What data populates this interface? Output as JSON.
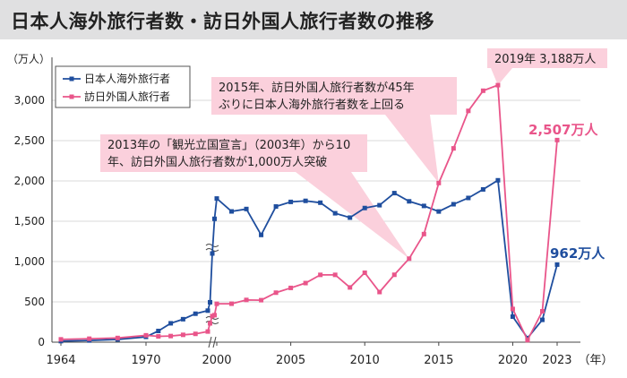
{
  "title": "日本人海外旅行者数・訪日外国人旅行者数の推移",
  "colors": {
    "outbound": "#1f4e9e",
    "inbound": "#e9558a",
    "callout": "#fbd0dc",
    "titlebar": "#e0e0e1"
  },
  "chart_data": {
    "type": "line",
    "ylabel": "（万人）",
    "xunit": "（年）",
    "ylim": [
      0,
      3300
    ],
    "yticks": [
      0,
      500,
      1000,
      1500,
      2000,
      2500,
      3000
    ],
    "ytick_labels": [
      "0",
      "500",
      "1,000",
      "1,500",
      "2,000",
      "2,500",
      "3,000"
    ],
    "xticks": [
      1964,
      1970,
      2000,
      2005,
      2010,
      2015,
      2020,
      2023
    ],
    "axis_break": "1980–2000",
    "legend_position": "top-left",
    "series": [
      {
        "name": "日本人海外旅行者",
        "x": [
          1964,
          1966,
          1968,
          1970,
          1972,
          1974,
          1976,
          1978,
          1980,
          1985,
          1990,
          1995,
          2000,
          2001,
          2002,
          2003,
          2004,
          2005,
          2006,
          2007,
          2008,
          2009,
          2010,
          2011,
          2012,
          2013,
          2014,
          2015,
          2016,
          2017,
          2018,
          2019,
          2020,
          2021,
          2022,
          2023
        ],
        "values": [
          13,
          21,
          34,
          66,
          139,
          234,
          285,
          353,
          391,
          495,
          1100,
          1530,
          1782,
          1622,
          1652,
          1330,
          1683,
          1740,
          1753,
          1730,
          1599,
          1545,
          1664,
          1699,
          1849,
          1747,
          1690,
          1621,
          1711,
          1789,
          1895,
          2008,
          317,
          51,
          277,
          962
        ]
      },
      {
        "name": "訪日外国人旅行者",
        "x": [
          1964,
          1966,
          1968,
          1970,
          1972,
          1974,
          1976,
          1978,
          1980,
          1985,
          1990,
          1995,
          2000,
          2001,
          2002,
          2003,
          2004,
          2005,
          2006,
          2007,
          2008,
          2009,
          2010,
          2011,
          2012,
          2013,
          2014,
          2015,
          2016,
          2017,
          2018,
          2019,
          2020,
          2021,
          2022,
          2023
        ],
        "values": [
          35,
          43,
          52,
          85,
          72,
          76,
          91,
          103,
          132,
          233,
          324,
          335,
          476,
          477,
          524,
          521,
          614,
          673,
          733,
          835,
          835,
          679,
          861,
          622,
          836,
          1036,
          1341,
          1974,
          2404,
          2869,
          3119,
          3188,
          412,
          25,
          383,
          2507
        ]
      }
    ],
    "annotations": [
      {
        "text_lines": [
          "2013年の「観光立国宣言」（2003年）から10",
          "年、訪日外国人旅行者数が1,000万人突破"
        ],
        "point_year": 2013
      },
      {
        "text_lines": [
          "2015年、訪日外国人旅行者数が45年",
          "ぶりに日本人海外旅行者数を上回る"
        ],
        "point_year": 2015
      },
      {
        "text_lines": [
          "2019年 3,188万人"
        ],
        "point_year": 2019
      }
    ],
    "end_labels": {
      "inbound": "2,507万人",
      "outbound": "962万人"
    }
  }
}
